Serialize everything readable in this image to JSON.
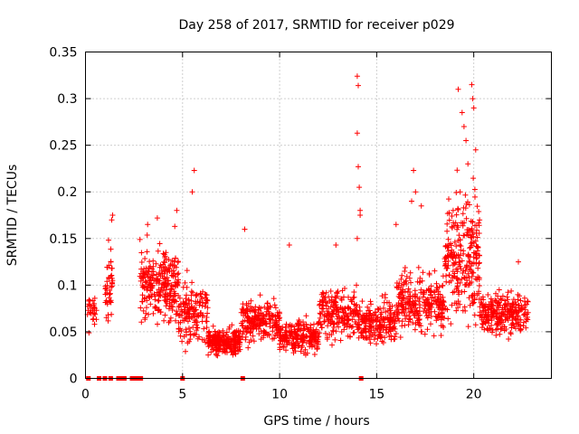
{
  "chart_data": {
    "type": "scatter",
    "title": "Day 258 of 2017, SRMTID for receiver p029",
    "xlabel": "GPS time / hours",
    "ylabel": "SRMTID / TECUs",
    "xlim": [
      0,
      24
    ],
    "ylim": [
      0,
      0.35
    ],
    "xticks": [
      "0",
      "5",
      "10",
      "15",
      "20"
    ],
    "yticks": [
      "0",
      "0.05",
      "0.1",
      "0.15",
      "0.2",
      "0.25",
      "0.3",
      "0.35"
    ],
    "grid": true,
    "marker": "+",
    "marker_color": "#ff0000",
    "clusters": [
      {
        "x_start": 0.1,
        "x_end": 0.6,
        "y_mean": 0.07,
        "y_spread": 0.015,
        "count": 30
      },
      {
        "x_start": 1.0,
        "x_end": 1.4,
        "y_mean": 0.1,
        "y_spread": 0.04,
        "count": 45
      },
      {
        "x_start": 2.8,
        "x_end": 4.8,
        "y_mean": 0.1,
        "y_spread": 0.035,
        "count": 260
      },
      {
        "x_start": 4.8,
        "x_end": 6.3,
        "y_mean": 0.07,
        "y_spread": 0.03,
        "count": 150
      },
      {
        "x_start": 6.3,
        "x_end": 8.0,
        "y_mean": 0.04,
        "y_spread": 0.012,
        "count": 240
      },
      {
        "x_start": 8.0,
        "x_end": 10.0,
        "y_mean": 0.06,
        "y_spread": 0.02,
        "count": 220
      },
      {
        "x_start": 10.0,
        "x_end": 12.0,
        "y_mean": 0.045,
        "y_spread": 0.015,
        "count": 220
      },
      {
        "x_start": 12.0,
        "x_end": 14.0,
        "y_mean": 0.07,
        "y_spread": 0.025,
        "count": 200
      },
      {
        "x_start": 14.0,
        "x_end": 16.0,
        "y_mean": 0.06,
        "y_spread": 0.02,
        "count": 220
      },
      {
        "x_start": 16.0,
        "x_end": 18.5,
        "y_mean": 0.08,
        "y_spread": 0.03,
        "count": 280
      },
      {
        "x_start": 18.5,
        "x_end": 20.3,
        "y_mean": 0.13,
        "y_spread": 0.06,
        "count": 260
      },
      {
        "x_start": 20.3,
        "x_end": 22.8,
        "y_mean": 0.07,
        "y_spread": 0.02,
        "count": 260
      }
    ],
    "outliers": [
      {
        "x": 5.6,
        "y": 0.223
      },
      {
        "x": 5.5,
        "y": 0.2
      },
      {
        "x": 4.7,
        "y": 0.18
      },
      {
        "x": 4.6,
        "y": 0.163
      },
      {
        "x": 1.4,
        "y": 0.175
      },
      {
        "x": 1.35,
        "y": 0.17
      },
      {
        "x": 3.7,
        "y": 0.172
      },
      {
        "x": 3.2,
        "y": 0.165
      },
      {
        "x": 8.2,
        "y": 0.16
      },
      {
        "x": 10.5,
        "y": 0.143
      },
      {
        "x": 12.9,
        "y": 0.143
      },
      {
        "x": 14.0,
        "y": 0.324
      },
      {
        "x": 14.05,
        "y": 0.314
      },
      {
        "x": 14.0,
        "y": 0.263
      },
      {
        "x": 14.05,
        "y": 0.227
      },
      {
        "x": 14.1,
        "y": 0.205
      },
      {
        "x": 14.15,
        "y": 0.18
      },
      {
        "x": 14.15,
        "y": 0.175
      },
      {
        "x": 14.0,
        "y": 0.15
      },
      {
        "x": 16.9,
        "y": 0.223
      },
      {
        "x": 17.0,
        "y": 0.2
      },
      {
        "x": 16.8,
        "y": 0.19
      },
      {
        "x": 17.3,
        "y": 0.185
      },
      {
        "x": 16.0,
        "y": 0.165
      },
      {
        "x": 19.2,
        "y": 0.31
      },
      {
        "x": 19.9,
        "y": 0.315
      },
      {
        "x": 19.95,
        "y": 0.3
      },
      {
        "x": 19.4,
        "y": 0.285
      },
      {
        "x": 20.0,
        "y": 0.29
      },
      {
        "x": 19.5,
        "y": 0.27
      },
      {
        "x": 19.6,
        "y": 0.255
      },
      {
        "x": 20.1,
        "y": 0.245
      },
      {
        "x": 19.7,
        "y": 0.23
      },
      {
        "x": 19.3,
        "y": 0.2
      },
      {
        "x": 20.3,
        "y": 0.17
      },
      {
        "x": 22.3,
        "y": 0.125
      }
    ],
    "zero_points": [
      0.15,
      0.7,
      1.0,
      1.3,
      1.7,
      1.8,
      2.0,
      2.4,
      2.6,
      2.7,
      2.8,
      2.85,
      5.0,
      8.1,
      14.2
    ]
  }
}
